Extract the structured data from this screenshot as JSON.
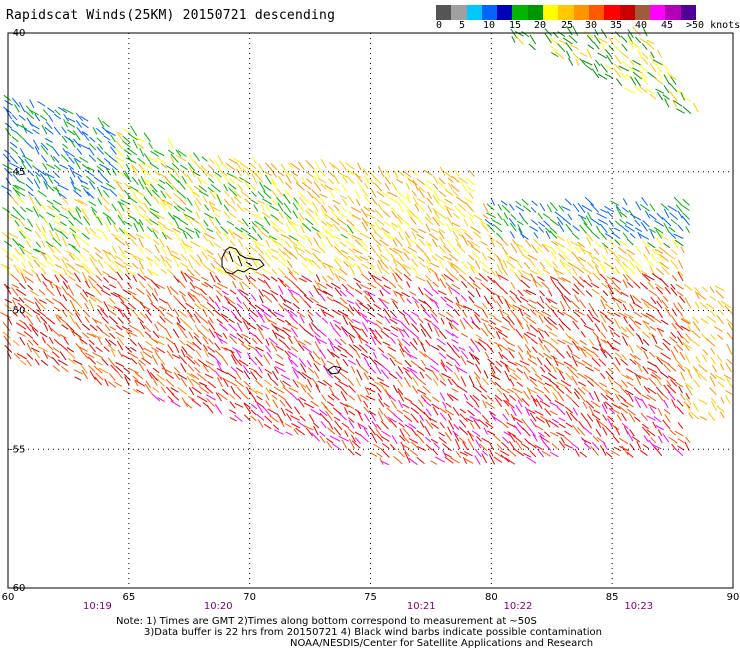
{
  "title": "Rapidscat Winds(25KM) 20150721 descending",
  "colorbar": {
    "colors": [
      "#555555",
      "#a0a0a0",
      "#00c8ff",
      "#0064ff",
      "#0000b4",
      "#00b400",
      "#009600",
      "#ffff00",
      "#ffc800",
      "#ff9600",
      "#ff5a00",
      "#ff0000",
      "#c80000",
      "#a05a3c",
      "#ff00ff",
      "#b400b4",
      "#500096"
    ],
    "labels": [
      "0",
      "5",
      "10",
      "15",
      "20",
      "25",
      "30",
      "35",
      "40",
      "45",
      ">50 knots"
    ]
  },
  "map": {
    "lon_range": [
      60,
      90
    ],
    "lat_range": [
      -60,
      -40
    ],
    "lon_ticks": [
      "60",
      "65",
      "70",
      "75",
      "80",
      "85",
      "90"
    ],
    "lat_ticks": [
      "-40",
      "-45",
      "-50",
      "-55",
      "-60"
    ],
    "times": [
      {
        "label": "10:19",
        "lon": 63.7
      },
      {
        "label": "10:20",
        "lon": 68.7
      },
      {
        "label": "10:21",
        "lon": 77.1
      },
      {
        "label": "10:22",
        "lon": 81.1
      },
      {
        "label": "10:23",
        "lon": 86.1
      }
    ]
  },
  "notes": {
    "line1": "Note: 1) Times are GMT 2)Times along bottom correspond to measurement at ~50S",
    "line2": "3)Data buffer is 22 hrs from 20150721 4) Black wind barbs indicate possible contamination",
    "line3": "NOAA/NESDIS/Center for Satellite Applications and Research"
  }
}
